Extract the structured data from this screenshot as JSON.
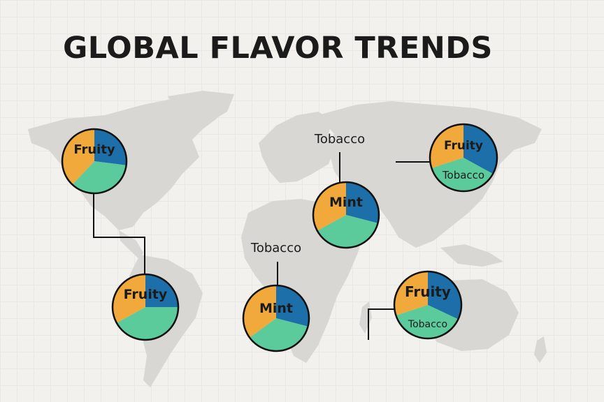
{
  "title": "GLOBAL FLAVOR TRENDS",
  "colors": {
    "orange": "#f2a93b",
    "blue": "#1c6fa8",
    "green": "#5ccb9b",
    "outline": "#111111",
    "map": "#d9d7d4"
  },
  "chart_data": {
    "type": "pie",
    "note_labels": [
      "Tobacco",
      "Tobacco"
    ],
    "pies": [
      {
        "region": "North America",
        "label": "Fruity",
        "slices": [
          {
            "color": "orange",
            "value": 38
          },
          {
            "color": "blue",
            "value": 27
          },
          {
            "color": "green",
            "value": 35
          }
        ]
      },
      {
        "region": "South America",
        "label": "Fruity",
        "slices": [
          {
            "color": "orange",
            "value": 33
          },
          {
            "color": "blue",
            "value": 25
          },
          {
            "color": "green",
            "value": 42
          }
        ]
      },
      {
        "region": "Europe",
        "label": "Mint",
        "slices": [
          {
            "color": "orange",
            "value": 33
          },
          {
            "color": "blue",
            "value": 29
          },
          {
            "color": "green",
            "value": 38
          }
        ]
      },
      {
        "region": "Africa",
        "label": "Mint",
        "slices": [
          {
            "color": "orange",
            "value": 35
          },
          {
            "color": "blue",
            "value": 29
          },
          {
            "color": "green",
            "value": 36
          }
        ]
      },
      {
        "region": "East Asia",
        "label": "Fruity",
        "sublabel": "Tobacco",
        "slices": [
          {
            "color": "orange",
            "value": 30
          },
          {
            "color": "blue",
            "value": 33
          },
          {
            "color": "green",
            "value": 37
          }
        ]
      },
      {
        "region": "Oceania",
        "label": "Fruity",
        "sublabel": "Tobacco",
        "slices": [
          {
            "color": "orange",
            "value": 30
          },
          {
            "color": "blue",
            "value": 32
          },
          {
            "color": "green",
            "value": 38
          }
        ]
      }
    ]
  }
}
